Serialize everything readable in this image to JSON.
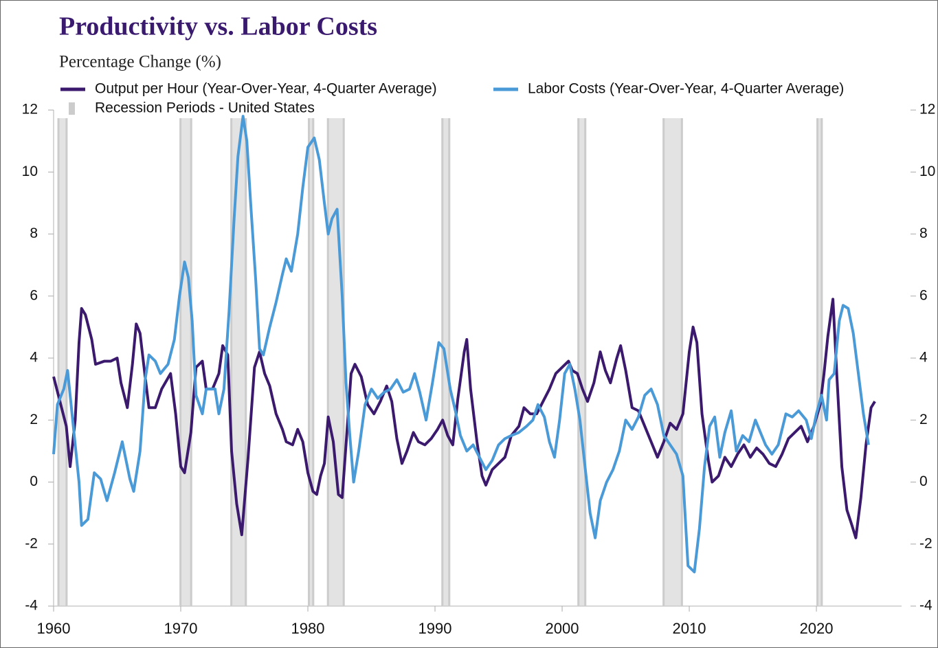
{
  "chart_data": {
    "type": "line",
    "title": "Productivity vs. Labor Costs",
    "subtitle": "Percentage Change (%)",
    "xlim": [
      1960,
      2026.7
    ],
    "xticks": [
      1960,
      1970,
      1980,
      1990,
      2000,
      2010,
      2020
    ],
    "ylim": [
      -4,
      13
    ],
    "yticks": [
      -4,
      -2,
      0,
      2,
      4,
      6,
      8,
      10,
      12
    ],
    "y2lim": [
      -4,
      13
    ],
    "y2ticks": [
      -4,
      -2,
      0,
      2,
      4,
      6,
      8,
      10,
      12
    ],
    "grid": false,
    "legend": "top-left",
    "recessions": {
      "name": "Recession Periods - United States",
      "color": "#cccccc",
      "ranges": [
        [
          1960.3,
          1961.1
        ],
        [
          1969.9,
          1970.9
        ],
        [
          1973.9,
          1975.2
        ],
        [
          1980.0,
          1980.5
        ],
        [
          1981.5,
          1982.9
        ],
        [
          1990.5,
          1991.2
        ],
        [
          2001.2,
          2001.9
        ],
        [
          2007.9,
          2009.5
        ],
        [
          2020.0,
          2020.5
        ]
      ]
    },
    "series": [
      {
        "name": "Output per Hour (Year-Over-Year, 4-Quarter Average)",
        "color": "#3b1a6e",
        "x": [
          1960.0,
          1960.5,
          1961.0,
          1961.3,
          1961.7,
          1962.0,
          1962.2,
          1962.5,
          1963.0,
          1963.3,
          1964.0,
          1964.5,
          1965.0,
          1965.3,
          1965.8,
          1966.2,
          1966.5,
          1966.8,
          1967.2,
          1967.5,
          1968.0,
          1968.5,
          1969.2,
          1969.6,
          1970.0,
          1970.3,
          1970.8,
          1971.2,
          1971.7,
          1972.0,
          1972.5,
          1973.0,
          1973.3,
          1973.7,
          1974.0,
          1974.4,
          1974.8,
          1975.3,
          1975.8,
          1976.2,
          1976.6,
          1977.0,
          1977.5,
          1978.0,
          1978.3,
          1978.8,
          1979.2,
          1979.6,
          1980.0,
          1980.4,
          1980.7,
          1981.0,
          1981.3,
          1981.6,
          1982.0,
          1982.4,
          1982.7,
          1983.0,
          1983.4,
          1983.7,
          1984.2,
          1984.7,
          1985.2,
          1985.7,
          1986.2,
          1986.6,
          1987.0,
          1987.4,
          1987.8,
          1988.3,
          1988.7,
          1989.2,
          1989.7,
          1990.2,
          1990.6,
          1991.0,
          1991.4,
          1991.8,
          1992.3,
          1992.5,
          1992.8,
          1993.3,
          1993.7,
          1994.0,
          1994.5,
          1995.0,
          1995.5,
          1996.0,
          1996.6,
          1997.0,
          1997.5,
          1998.0,
          1998.5,
          1999.0,
          1999.5,
          2000.0,
          2000.5,
          2000.8,
          2001.2,
          2001.6,
          2002.0,
          2002.5,
          2003.0,
          2003.4,
          2003.8,
          2004.3,
          2004.6,
          2005.0,
          2005.5,
          2006.0,
          2006.5,
          2007.0,
          2007.5,
          2008.0,
          2008.5,
          2009.0,
          2009.5,
          2010.0,
          2010.3,
          2010.6,
          2011.0,
          2011.5,
          2011.8,
          2012.3,
          2012.8,
          2013.3,
          2013.8,
          2014.3,
          2014.8,
          2015.3,
          2015.8,
          2016.3,
          2016.8,
          2017.3,
          2017.8,
          2018.3,
          2018.8,
          2019.3,
          2019.8,
          2020.3,
          2020.6,
          2020.9,
          2021.3,
          2021.6,
          2022.0,
          2022.4,
          2022.8,
          2023.1,
          2023.5,
          2023.9,
          2024.3,
          2024.6
        ],
        "values": [
          3.4,
          2.6,
          1.8,
          0.5,
          2.0,
          4.5,
          5.6,
          5.4,
          4.6,
          3.8,
          3.9,
          3.9,
          4.0,
          3.2,
          2.4,
          3.8,
          5.1,
          4.8,
          3.4,
          2.4,
          2.4,
          3.0,
          3.5,
          2.2,
          0.5,
          0.3,
          1.6,
          3.7,
          3.9,
          3.0,
          3.0,
          3.5,
          4.4,
          4.1,
          1.0,
          -0.7,
          -1.7,
          0.8,
          3.7,
          4.2,
          3.5,
          3.1,
          2.2,
          1.7,
          1.3,
          1.2,
          1.7,
          1.3,
          0.3,
          -0.3,
          -0.4,
          0.2,
          0.6,
          2.1,
          1.3,
          -0.4,
          -0.5,
          1.2,
          3.5,
          3.8,
          3.4,
          2.5,
          2.2,
          2.6,
          3.1,
          2.6,
          1.4,
          0.6,
          1.0,
          1.6,
          1.3,
          1.2,
          1.4,
          1.7,
          2.0,
          1.5,
          1.2,
          2.7,
          4.2,
          4.6,
          3.0,
          1.3,
          0.2,
          -0.1,
          0.4,
          0.6,
          0.8,
          1.5,
          1.8,
          2.4,
          2.2,
          2.2,
          2.6,
          3.0,
          3.5,
          3.7,
          3.9,
          3.6,
          3.5,
          3.0,
          2.6,
          3.2,
          4.2,
          3.6,
          3.2,
          4.0,
          4.4,
          3.6,
          2.4,
          2.3,
          1.8,
          1.3,
          0.8,
          1.3,
          1.9,
          1.7,
          2.2,
          4.2,
          5.0,
          4.5,
          2.2,
          0.7,
          0.0,
          0.2,
          0.8,
          0.5,
          0.9,
          1.2,
          0.8,
          1.1,
          0.9,
          0.6,
          0.5,
          0.9,
          1.4,
          1.6,
          1.8,
          1.3,
          1.8,
          2.5,
          3.5,
          4.7,
          5.9,
          3.5,
          0.5,
          -0.9,
          -1.4,
          -1.8,
          -0.5,
          1.2,
          2.4,
          2.6
        ]
      },
      {
        "name": "Labor Costs (Year-Over-Year, 4-Quarter Average)",
        "color": "#4a9ad8",
        "x": [
          1960.0,
          1960.3,
          1960.8,
          1961.1,
          1961.5,
          1962.0,
          1962.2,
          1962.7,
          1963.2,
          1963.7,
          1964.2,
          1964.8,
          1965.4,
          1966.0,
          1966.3,
          1966.8,
          1967.2,
          1967.5,
          1968.0,
          1968.4,
          1969.0,
          1969.5,
          1969.9,
          1970.3,
          1970.6,
          1970.9,
          1971.2,
          1971.7,
          1972.0,
          1972.7,
          1973.0,
          1973.4,
          1973.8,
          1974.2,
          1974.5,
          1974.9,
          1975.2,
          1975.5,
          1975.9,
          1976.2,
          1976.5,
          1977.0,
          1977.5,
          1978.0,
          1978.3,
          1978.7,
          1979.2,
          1979.6,
          1980.0,
          1980.5,
          1980.9,
          1981.3,
          1981.6,
          1981.9,
          1982.3,
          1982.7,
          1983.0,
          1983.3,
          1983.6,
          1984.0,
          1984.5,
          1985.0,
          1985.5,
          1986.0,
          1986.5,
          1987.0,
          1987.5,
          1988.0,
          1988.4,
          1988.8,
          1989.3,
          1989.8,
          1990.3,
          1990.7,
          1991.2,
          1991.6,
          1992.0,
          1992.5,
          1993.0,
          1993.5,
          1994.0,
          1994.5,
          1995.0,
          1995.5,
          1996.0,
          1996.6,
          1997.2,
          1997.7,
          1998.1,
          1998.6,
          1999.0,
          1999.4,
          1999.8,
          2000.2,
          2000.6,
          2001.0,
          2001.4,
          2001.8,
          2002.2,
          2002.6,
          2003.0,
          2003.5,
          2004.0,
          2004.5,
          2005.0,
          2005.5,
          2006.0,
          2006.5,
          2007.0,
          2007.5,
          2008.0,
          2008.5,
          2009.0,
          2009.5,
          2009.9,
          2010.4,
          2010.8,
          2011.2,
          2011.6,
          2012.0,
          2012.4,
          2012.8,
          2013.3,
          2013.7,
          2014.2,
          2014.7,
          2015.2,
          2015.6,
          2016.0,
          2016.5,
          2017.0,
          2017.6,
          2018.1,
          2018.6,
          2019.2,
          2019.6,
          2020.0,
          2020.4,
          2020.8,
          2021.0,
          2021.4,
          2021.8,
          2022.1,
          2022.5,
          2022.9,
          2023.3,
          2023.7,
          2024.1
        ],
        "values": [
          0.9,
          2.5,
          3.0,
          3.6,
          2.0,
          0.0,
          -1.4,
          -1.2,
          0.3,
          0.1,
          -0.6,
          0.3,
          1.3,
          0.1,
          -0.3,
          1.0,
          3.3,
          4.1,
          3.9,
          3.5,
          3.8,
          4.6,
          6.0,
          7.1,
          6.6,
          5.2,
          2.8,
          2.2,
          3.0,
          3.0,
          2.2,
          3.0,
          5.5,
          8.5,
          10.5,
          11.8,
          11.0,
          9.0,
          6.5,
          4.3,
          4.1,
          5.0,
          5.8,
          6.7,
          7.2,
          6.8,
          8.0,
          9.5,
          10.8,
          11.1,
          10.4,
          9.0,
          8.0,
          8.5,
          8.8,
          6.0,
          3.2,
          1.5,
          0.0,
          1.0,
          2.5,
          3.0,
          2.7,
          2.9,
          3.0,
          3.3,
          2.9,
          3.0,
          3.5,
          2.9,
          2.0,
          3.2,
          4.5,
          4.3,
          3.0,
          2.3,
          1.5,
          1.0,
          1.2,
          0.8,
          0.4,
          0.7,
          1.2,
          1.4,
          1.5,
          1.6,
          1.8,
          2.0,
          2.5,
          2.1,
          1.3,
          0.8,
          2.0,
          3.5,
          3.8,
          3.0,
          2.0,
          0.5,
          -1.0,
          -1.8,
          -0.6,
          0.0,
          0.4,
          1.0,
          2.0,
          1.7,
          2.1,
          2.8,
          3.0,
          2.5,
          1.5,
          1.2,
          0.9,
          0.2,
          -2.7,
          -2.9,
          -1.5,
          0.5,
          1.8,
          2.1,
          0.8,
          1.6,
          2.3,
          1.0,
          1.5,
          1.3,
          2.0,
          1.6,
          1.2,
          0.9,
          1.2,
          2.2,
          2.1,
          2.3,
          2.0,
          1.4,
          2.2,
          2.8,
          2.0,
          3.3,
          3.5,
          5.2,
          5.7,
          5.6,
          4.8,
          3.5,
          2.2,
          1.2
        ]
      }
    ]
  }
}
